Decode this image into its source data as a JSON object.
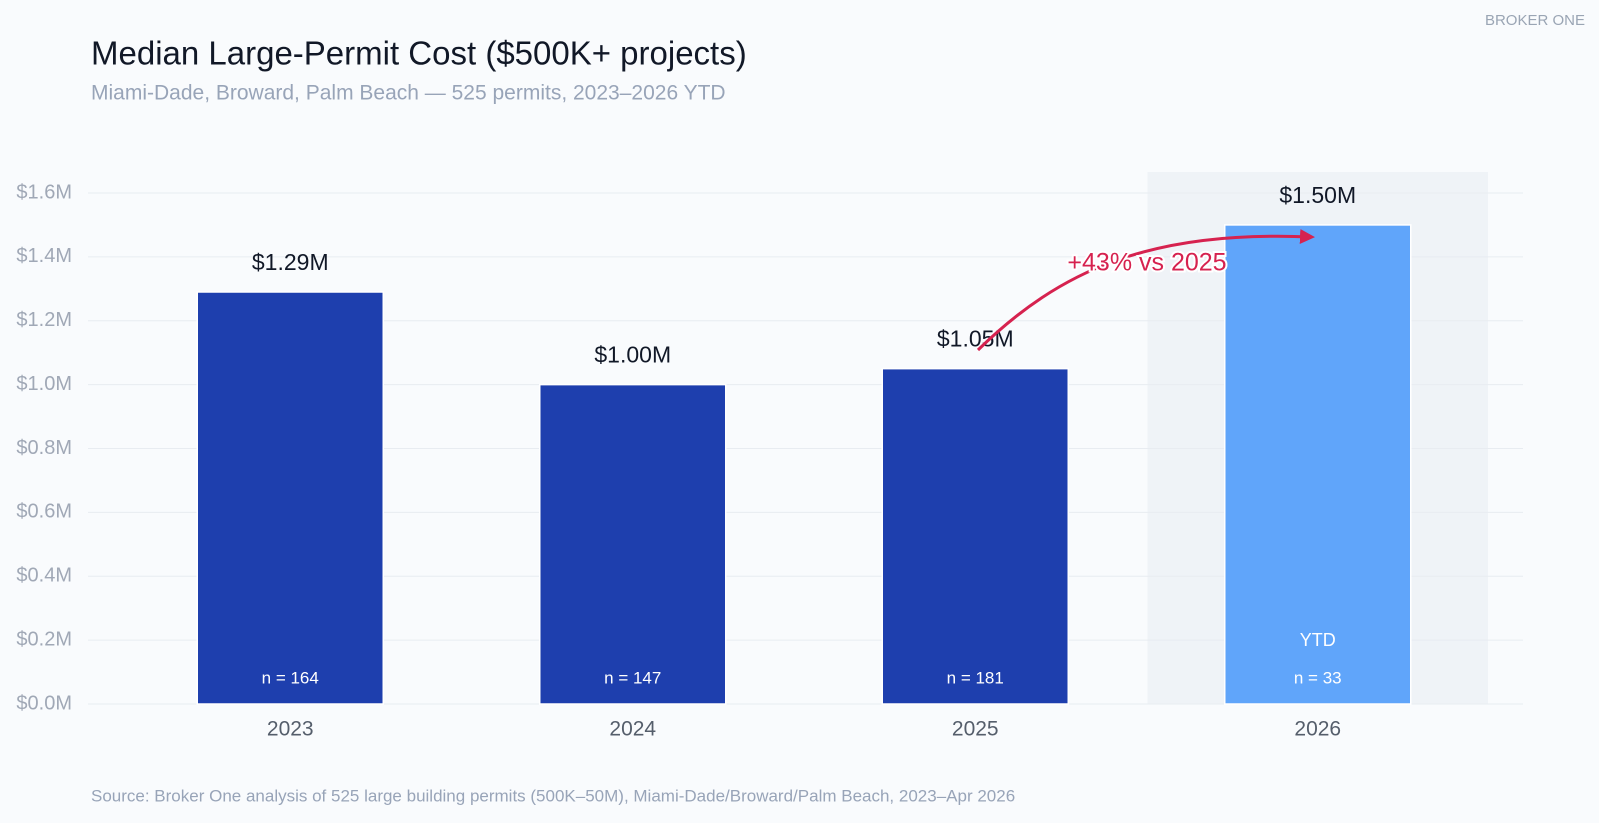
{
  "brand": "BROKER ONE",
  "chart_data": {
    "type": "bar",
    "title": "Median Large-Permit Cost ($500K+ projects)",
    "subtitle": "Miami-Dade, Broward, Palm Beach — 525 permits, 2023–2026 YTD",
    "categories": [
      "2023",
      "2024",
      "2025",
      "2026"
    ],
    "values": [
      1.29,
      1.0,
      1.05,
      1.5
    ],
    "value_labels": [
      "$1.29M",
      "$1.00M",
      "$1.05M",
      "$1.50M"
    ],
    "colors": [
      "#1e3fae",
      "#1e3fae",
      "#1e3fae",
      "#60a5fa"
    ],
    "sample_labels": [
      "n = 164",
      "n = 147",
      "n = 181",
      "n = 33"
    ],
    "bar_notes": [
      null,
      null,
      null,
      "YTD"
    ],
    "annotation": "+43% vs 2025",
    "ylim": [
      0,
      1.6
    ],
    "yticks": [
      {
        "value": 0,
        "label": "$0.0M"
      },
      {
        "value": 0.2,
        "label": "$0.2M"
      },
      {
        "value": 0.4,
        "label": "$0.4M"
      },
      {
        "value": 0.6,
        "label": "$0.6M"
      },
      {
        "value": 0.8,
        "label": "$0.8M"
      },
      {
        "value": 1.0,
        "label": "$1.0M"
      },
      {
        "value": 1.2,
        "label": "$1.2M"
      },
      {
        "value": 1.4,
        "label": "$1.4M"
      },
      {
        "value": 1.6,
        "label": "$1.6M"
      }
    ],
    "grid": true,
    "source": "Source: Broker One analysis of 525 large building permits (500K–50M), Miami-Dade/Broward/Palm Beach, 2023–Apr 2026"
  }
}
